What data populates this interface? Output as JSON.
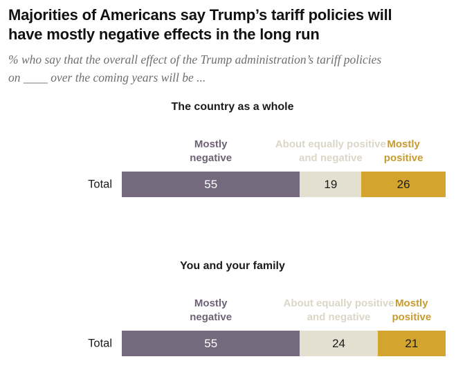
{
  "title": {
    "line1": "Majorities of Americans say Trump’s tariff policies will",
    "line2": "have mostly negative effects in the long run",
    "full": "Majorities of Americans say Trump’s tariff policies will have mostly negative effects in the long run"
  },
  "subtitle": {
    "line1": "% who say that the overall effect of the Trump administration’s tariff policies",
    "line2": "on ____ over the coming years will be ...",
    "full": "% who say that the overall effect of the Trump administration’s tariff policies on ____ over the coming years will be ..."
  },
  "legend_labels": [
    {
      "line1": "Mostly",
      "line2": "negative"
    },
    {
      "line1": "About equally positive",
      "line2": "and negative"
    },
    {
      "line1": "Mostly",
      "line2": "positive"
    }
  ],
  "colors": {
    "negative_bar": "#756a7d",
    "neutral_bar": "#e3e0d1",
    "positive_bar": "#d3a52f",
    "negative_label_text": "#6d6176",
    "neutral_label_text": "#dad7c7",
    "positive_label_text": "#c79b2e",
    "value_on_negative": "#ffffff",
    "value_on_light": "#1a1a1a",
    "title_text": "#111111",
    "subtitle_text": "#6e6e6e"
  },
  "chart_data": [
    {
      "type": "bar",
      "stacked": true,
      "orientation": "horizontal",
      "title": "The country as a whole",
      "categories": [
        "Total"
      ],
      "series": [
        {
          "name": "Mostly negative",
          "values": [
            55
          ]
        },
        {
          "name": "About equally positive and negative",
          "values": [
            19
          ]
        },
        {
          "name": "Mostly positive",
          "values": [
            26
          ]
        }
      ],
      "unit": "%",
      "xlim": [
        0,
        100
      ],
      "grid": false,
      "legend_position": "above-segments"
    },
    {
      "type": "bar",
      "stacked": true,
      "orientation": "horizontal",
      "title": "You and your family",
      "categories": [
        "Total"
      ],
      "series": [
        {
          "name": "Mostly negative",
          "values": [
            55
          ]
        },
        {
          "name": "About equally positive and negative",
          "values": [
            24
          ]
        },
        {
          "name": "Mostly positive",
          "values": [
            21
          ]
        }
      ],
      "unit": "%",
      "xlim": [
        0,
        100
      ],
      "grid": false,
      "legend_position": "above-segments"
    }
  ]
}
